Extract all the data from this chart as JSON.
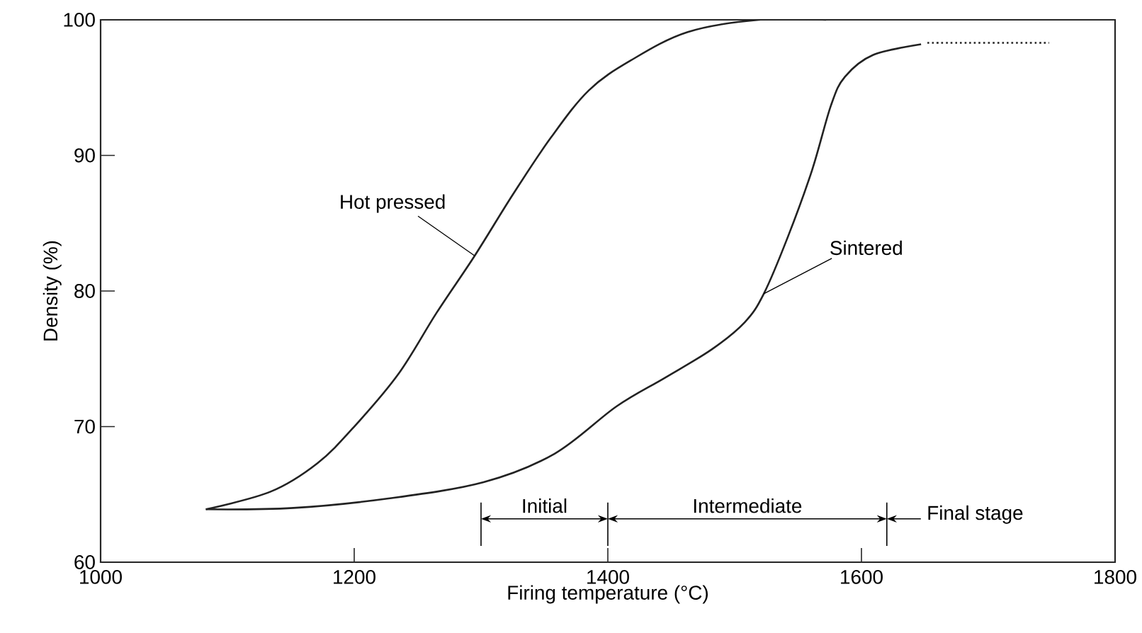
{
  "chart_data": {
    "type": "line",
    "xlabel": "Firing temperature (°C)",
    "ylabel": "Density (%)",
    "xlim": [
      1000,
      1800
    ],
    "xticks": [
      1000,
      1200,
      1400,
      1600,
      1800
    ],
    "ylim": [
      60,
      100
    ],
    "yticks": [
      60,
      70,
      80,
      90,
      100
    ],
    "marker": "none",
    "series": [
      {
        "color": "#222222",
        "line_style": "solid",
        "x": [
          1083,
          1134,
          1171,
          1201,
          1235,
          1265,
          1295,
          1325,
          1355,
          1385,
          1418,
          1463,
          1519,
          1572
        ],
        "values": [
          63.9,
          65.2,
          67.3,
          70.1,
          73.9,
          78.4,
          82.6,
          87.1,
          91.3,
          94.8,
          97.0,
          99.1,
          100,
          100
        ]
      },
      {
        "color": "#222222",
        "line_style": "solid",
        "x": [
          1083,
          1152,
          1227,
          1302,
          1358,
          1407,
          1445,
          1482,
          1508,
          1523,
          1542,
          1561,
          1576,
          1587,
          1609,
          1647
        ],
        "values": [
          63.9,
          64.0,
          64.7,
          65.9,
          68.0,
          71.5,
          73.6,
          75.7,
          77.7,
          79.8,
          84.0,
          88.9,
          93.7,
          95.8,
          97.4,
          98.2
        ]
      },
      {
        "color": "#222222",
        "line_style": "dotted",
        "x": [
          1652,
          1748
        ],
        "values": [
          98.3,
          98.3
        ]
      }
    ],
    "ref_lines": [
      {
        "axis": "x",
        "value": 1300
      },
      {
        "axis": "x",
        "value": 1400
      },
      {
        "axis": "x",
        "value": 1620
      }
    ],
    "annotations": [
      {
        "text": "Hot pressed",
        "x": 1295,
        "y": 82.6
      },
      {
        "text": "Sintered",
        "x": 1523,
        "y": 79.8
      },
      "Initial",
      "Intermediate",
      {
        "text": "Final stage",
        "x": 1620,
        "y": 63.2
      }
    ]
  }
}
